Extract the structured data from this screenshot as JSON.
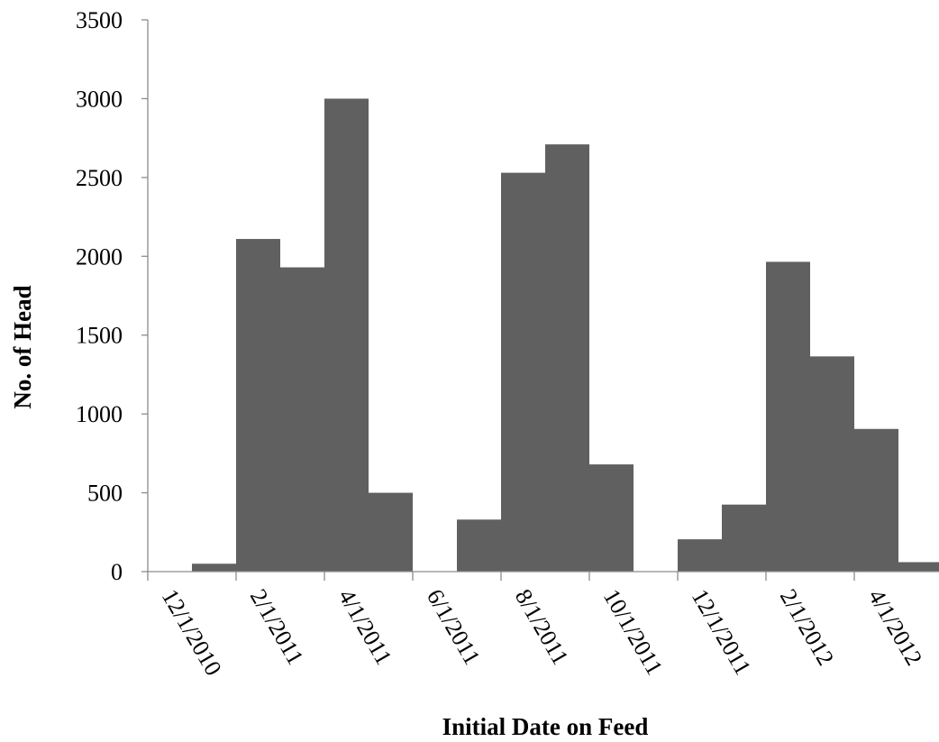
{
  "chart_data": {
    "type": "bar",
    "title": "",
    "xlabel": "Initial Date on Feed",
    "ylabel": "No. of Head",
    "ylim": [
      0,
      3500
    ],
    "yticks": [
      0,
      500,
      1000,
      1500,
      2000,
      2500,
      3000,
      3500
    ],
    "ytick_labels": [
      "0",
      "500",
      "1000",
      "1500",
      "2000",
      "2500",
      "3000",
      "3500"
    ],
    "xtick_labels": [
      "12/1/2010",
      "2/1/2011",
      "4/1/2011",
      "6/1/2011",
      "8/1/2011",
      "10/1/2011",
      "12/1/2011",
      "2/1/2012",
      "4/1/2012"
    ],
    "categories": [
      "12/1/2010",
      "1/1/2011",
      "2/1/2011",
      "3/1/2011",
      "4/1/2011",
      "5/1/2011",
      "6/1/2011",
      "7/1/2011",
      "8/1/2011",
      "9/1/2011",
      "10/1/2011",
      "11/1/2011",
      "12/1/2011",
      "1/1/2012",
      "2/1/2012",
      "3/1/2012",
      "4/1/2012",
      "5/1/2012"
    ],
    "values": [
      0,
      50,
      2110,
      1930,
      3000,
      500,
      0,
      330,
      2530,
      2710,
      680,
      0,
      205,
      425,
      1965,
      1365,
      905,
      60
    ],
    "bar_color": "#606060",
    "grid": false,
    "legend": "none"
  }
}
